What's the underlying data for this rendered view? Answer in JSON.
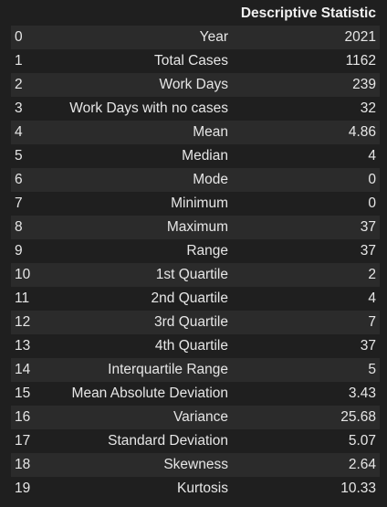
{
  "table": {
    "header": {
      "index": "",
      "name": "",
      "value": "Descriptive Statistic"
    },
    "rows": [
      {
        "index": "0",
        "name": "Year",
        "value": "2021"
      },
      {
        "index": "1",
        "name": "Total Cases",
        "value": "1162"
      },
      {
        "index": "2",
        "name": "Work Days",
        "value": "239"
      },
      {
        "index": "3",
        "name": "Work Days with no cases",
        "value": "32"
      },
      {
        "index": "4",
        "name": "Mean",
        "value": "4.86"
      },
      {
        "index": "5",
        "name": "Median",
        "value": "4"
      },
      {
        "index": "6",
        "name": "Mode",
        "value": "0"
      },
      {
        "index": "7",
        "name": "Minimum",
        "value": "0"
      },
      {
        "index": "8",
        "name": "Maximum",
        "value": "37"
      },
      {
        "index": "9",
        "name": "Range",
        "value": "37"
      },
      {
        "index": "10",
        "name": "1st Quartile",
        "value": "2"
      },
      {
        "index": "11",
        "name": "2nd Quartile",
        "value": "4"
      },
      {
        "index": "12",
        "name": "3rd Quartile",
        "value": "7"
      },
      {
        "index": "13",
        "name": "4th Quartile",
        "value": "37"
      },
      {
        "index": "14",
        "name": "Interquartile Range",
        "value": "5"
      },
      {
        "index": "15",
        "name": "Mean Absolute Deviation",
        "value": "3.43"
      },
      {
        "index": "16",
        "name": "Variance",
        "value": "25.68"
      },
      {
        "index": "17",
        "name": "Standard Deviation",
        "value": "5.07"
      },
      {
        "index": "18",
        "name": "Skewness",
        "value": "2.64"
      },
      {
        "index": "19",
        "name": "Kurtosis",
        "value": "10.33"
      }
    ]
  }
}
